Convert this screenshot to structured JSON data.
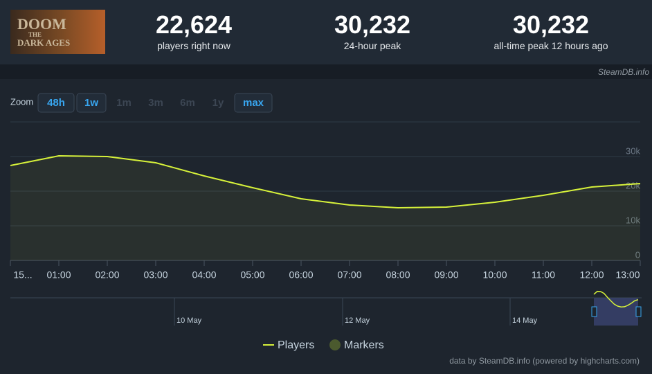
{
  "game": {
    "logo_top": "DOOM",
    "logo_mid": "THE",
    "logo_bottom": "DARK AGES"
  },
  "stats": [
    {
      "value": "22,624",
      "label": "players right now"
    },
    {
      "value": "30,232",
      "label": "24-hour peak"
    },
    {
      "value": "30,232",
      "label": "all-time peak 12 hours ago"
    }
  ],
  "source": "SteamDB.info",
  "zoom": {
    "label": "Zoom",
    "buttons": [
      "48h",
      "1w",
      "1m",
      "3m",
      "6m",
      "1y",
      "max"
    ],
    "enabled": [
      true,
      true,
      false,
      false,
      false,
      false,
      true
    ]
  },
  "chart_data": {
    "type": "line",
    "categories": [
      "15...",
      "01:00",
      "02:00",
      "03:00",
      "04:00",
      "05:00",
      "06:00",
      "07:00",
      "08:00",
      "09:00",
      "10:00",
      "11:00",
      "12:00",
      "13:00"
    ],
    "series": [
      {
        "name": "Players",
        "color": "#d7f23a",
        "values": [
          27400,
          30200,
          30000,
          28200,
          24400,
          21000,
          17800,
          16000,
          15200,
          15400,
          16800,
          18800,
          21200,
          22200
        ]
      }
    ],
    "markers": {
      "name": "Markers",
      "color": "#4b5a2e"
    },
    "ylim": [
      0,
      40000
    ],
    "yticks": [
      0,
      {
        "value": 10000,
        "label": "10k"
      },
      {
        "value": 20000,
        "label": "20k"
      },
      {
        "value": 30000,
        "label": "30k"
      }
    ],
    "grid": true,
    "navigator_dates": [
      "10 May",
      "12 May",
      "14 May"
    ],
    "credits": "data by SteamDB.info (powered by highcharts.com)"
  }
}
